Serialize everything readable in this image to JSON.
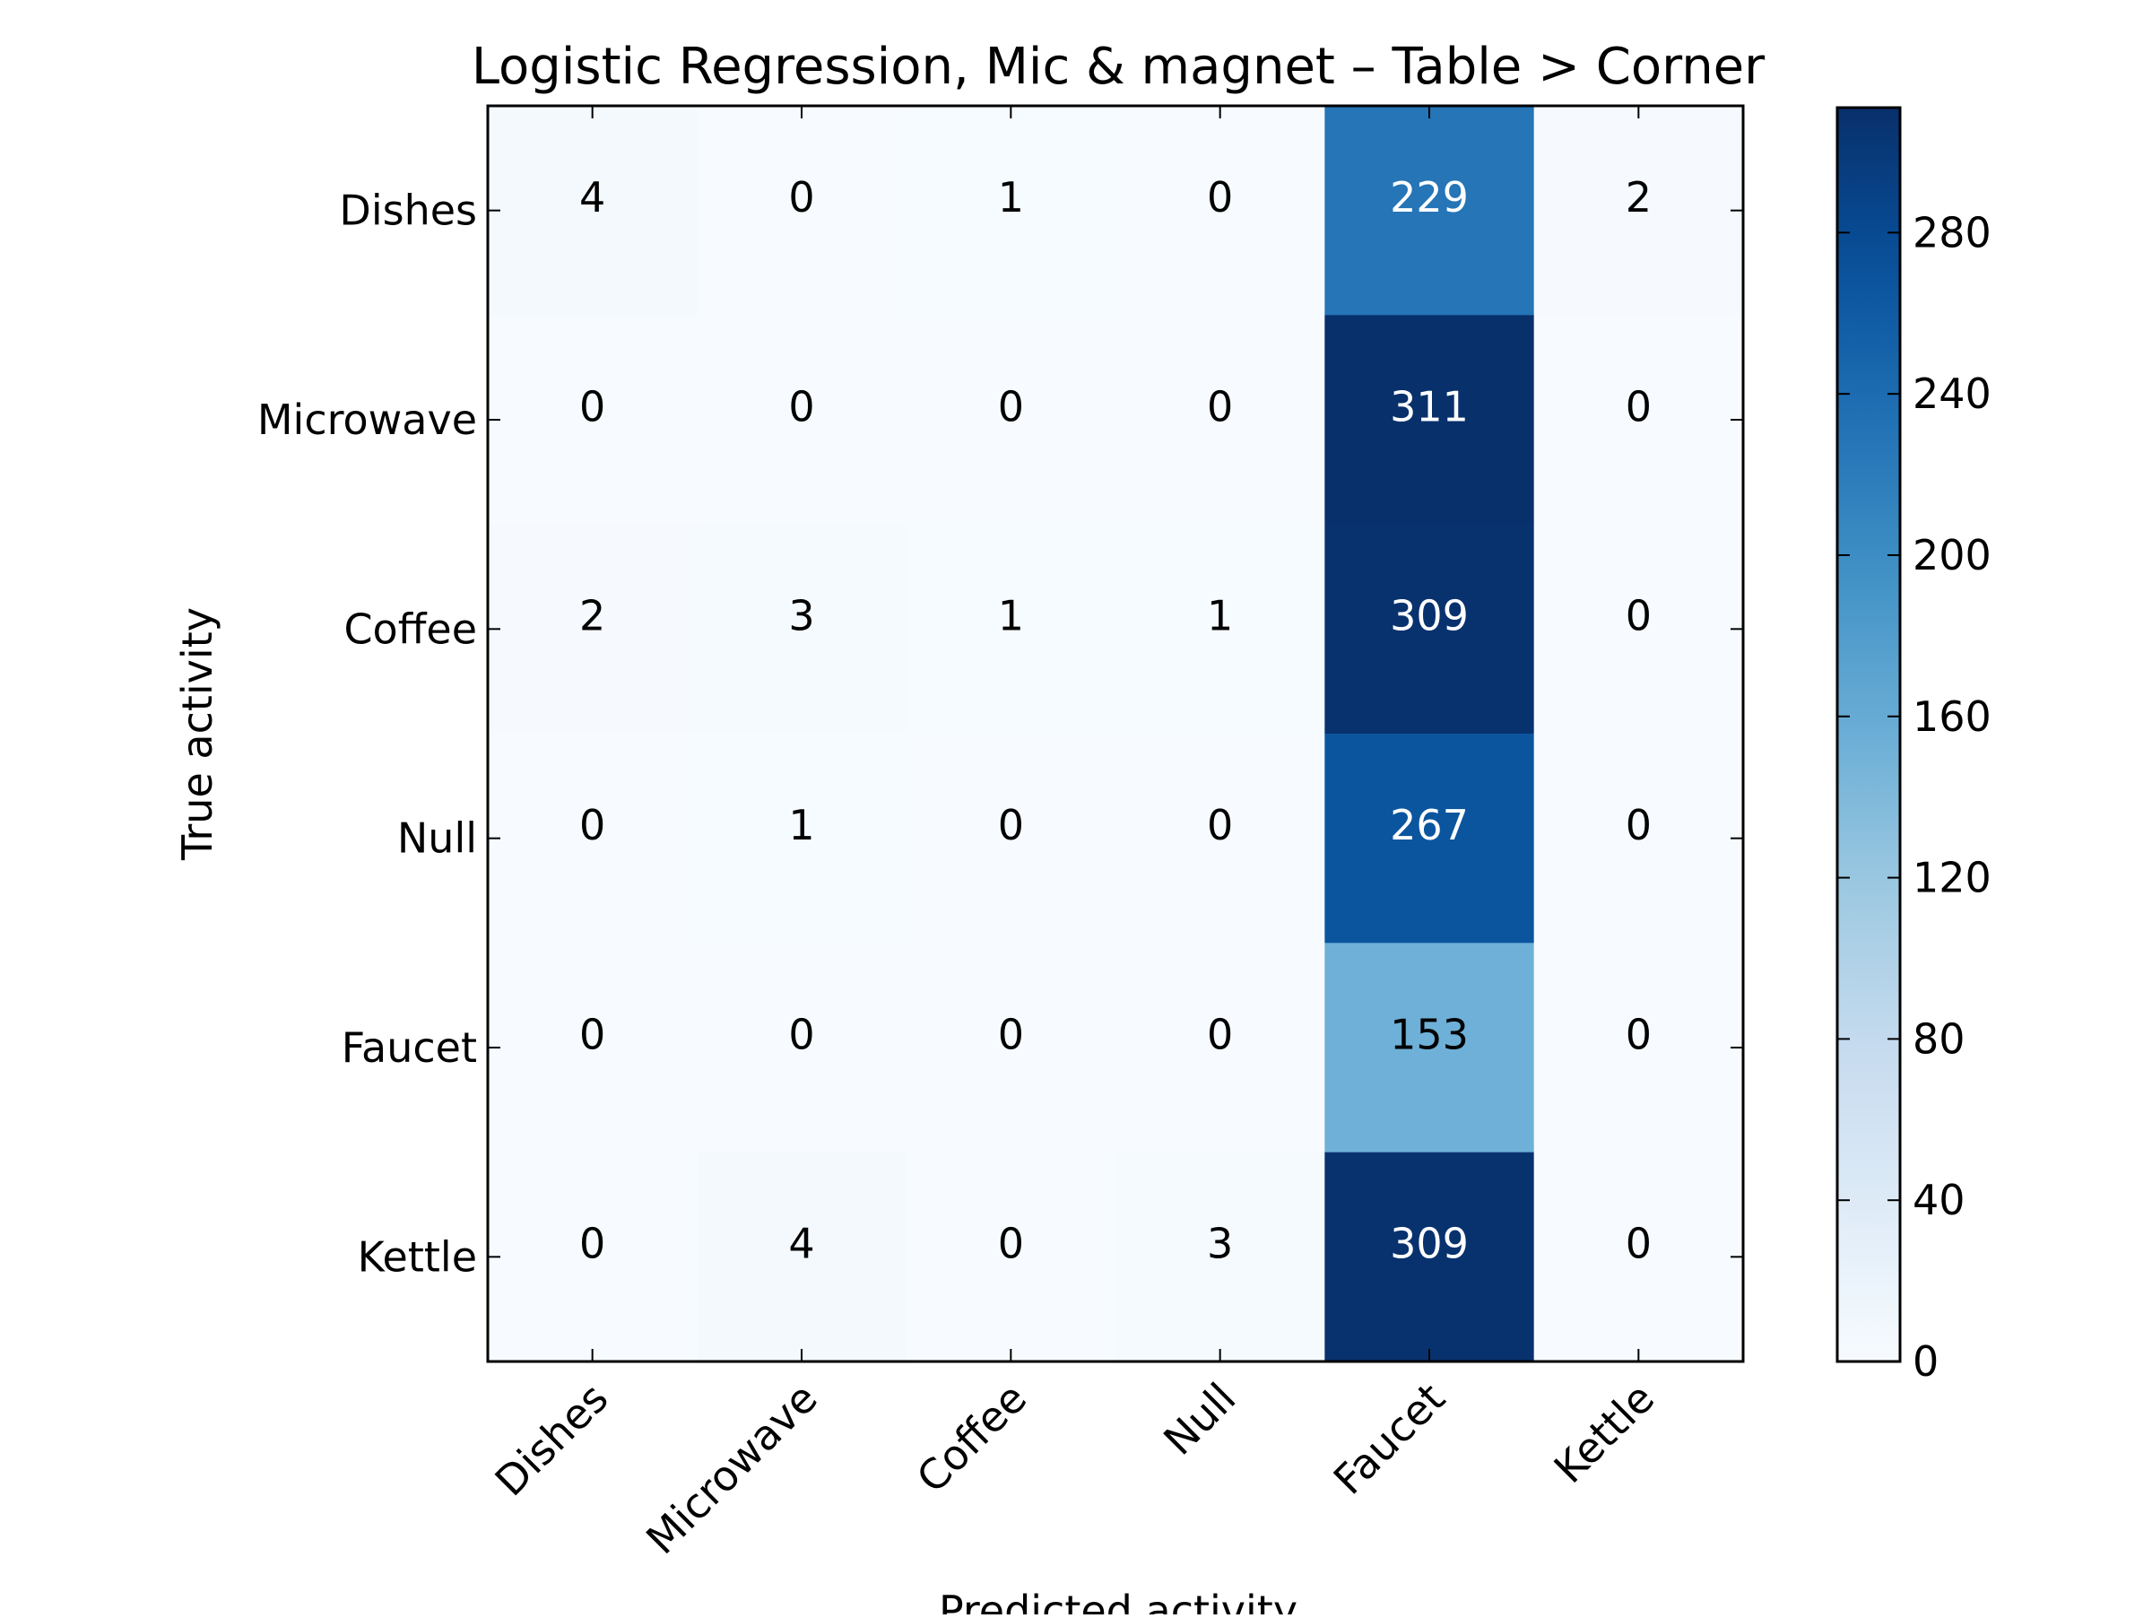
{
  "chart_data": {
    "type": "heatmap",
    "title": "Logistic Regression, Mic & magnet – Table > Corner",
    "xlabel": "Predicted activity",
    "ylabel": "True activity",
    "x_categories": [
      "Dishes",
      "Microwave",
      "Coffee",
      "Null",
      "Faucet",
      "Kettle"
    ],
    "y_categories": [
      "Dishes",
      "Microwave",
      "Coffee",
      "Null",
      "Faucet",
      "Kettle"
    ],
    "matrix": [
      [
        4,
        0,
        1,
        0,
        229,
        2
      ],
      [
        0,
        0,
        0,
        0,
        311,
        0
      ],
      [
        2,
        3,
        1,
        1,
        309,
        0
      ],
      [
        0,
        1,
        0,
        0,
        267,
        0
      ],
      [
        0,
        0,
        0,
        0,
        153,
        0
      ],
      [
        0,
        4,
        0,
        3,
        309,
        0
      ]
    ],
    "colormap": "Blues",
    "color_range": [
      0,
      311
    ],
    "colorbar_ticks": [
      0,
      40,
      80,
      120,
      160,
      200,
      240,
      280
    ],
    "colors": {
      "low": "#f7fbff",
      "high": "#08306b",
      "text_dark": "#000000",
      "text_light": "#ffffff"
    }
  }
}
